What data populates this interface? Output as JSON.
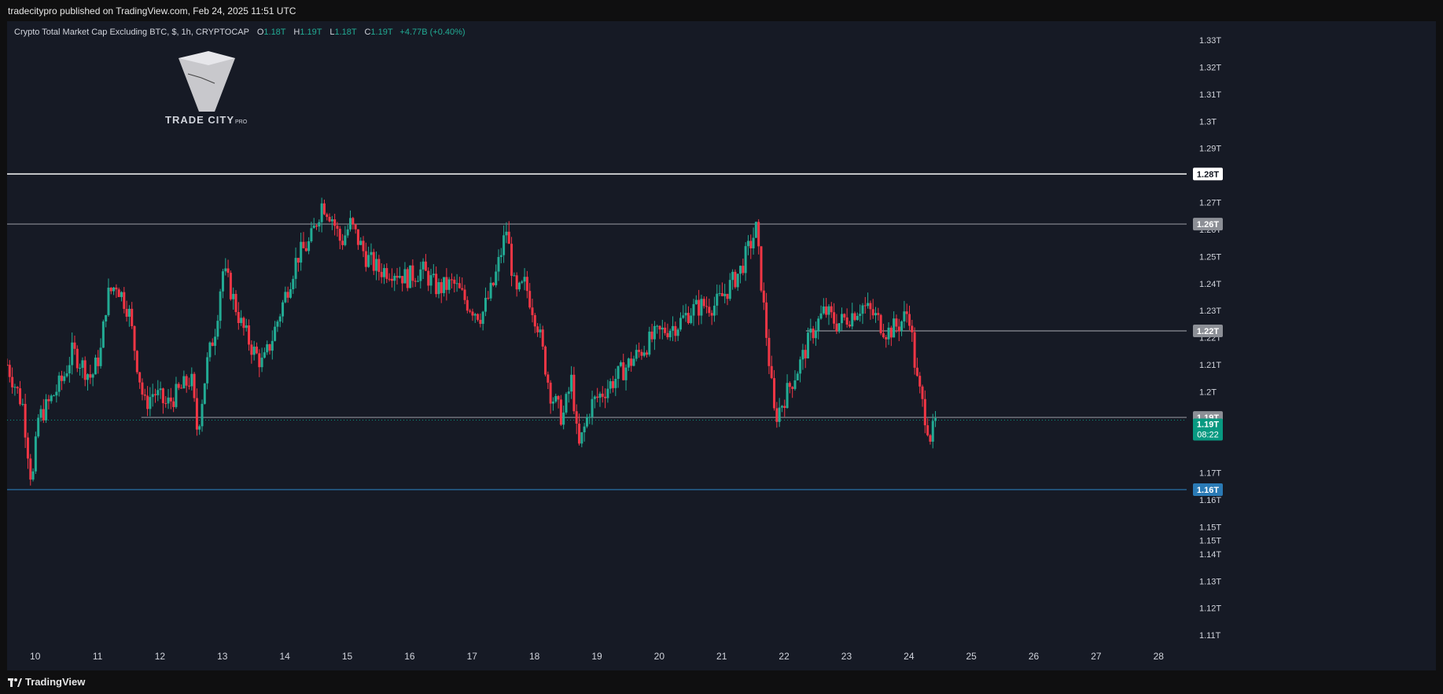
{
  "header": {
    "published_by": "tradecitypro published on TradingView.com, Feb 24, 2025 11:51 UTC"
  },
  "legend": {
    "symbol": "Crypto Total Market Cap Excluding BTC, $, 1h, CRYPTOCAP",
    "o_label": "O",
    "o_value": "1.18T",
    "h_label": "H",
    "h_value": "1.19T",
    "l_label": "L",
    "l_value": "1.18T",
    "c_label": "C",
    "c_value": "1.19T",
    "change": "+4.77B (+0.40%)"
  },
  "logo": {
    "text": "TRADE CITY",
    "suffix": "PRO"
  },
  "footer": {
    "brand": "TradingView"
  },
  "colors": {
    "background": "#161a25",
    "up": "#22ab94",
    "down": "#f23645",
    "grid_text": "#d1d4dc",
    "level_white": "#ffffff",
    "level_gray": "#8c8f96",
    "level_blue": "#2a7ab5",
    "current_price": "#089981"
  },
  "chart_data": {
    "type": "candlestick",
    "title": "Crypto Total Market Cap Excluding BTC, $, 1h, CRYPTOCAP",
    "x_unit": "day of month (Feb 2025)",
    "xlim": [
      9.55,
      28.45
    ],
    "ylim": [
      1.1045,
      1.337
    ],
    "y_ticks": [
      "1.11T",
      "1.12T",
      "1.13T",
      "1.14T",
      "1.15T",
      "1.15T",
      "1.16T",
      "1.17T",
      "1.19T",
      "1.2T",
      "1.21T",
      "1.22T",
      "1.23T",
      "1.24T",
      "1.25T",
      "1.26T",
      "1.27T",
      "1.28T",
      "1.29T",
      "1.3T",
      "1.31T",
      "1.32T",
      "1.33T"
    ],
    "y_tick_values": [
      1.11,
      1.12,
      1.13,
      1.14,
      1.145,
      1.15,
      1.16,
      1.17,
      1.19,
      1.2,
      1.21,
      1.22,
      1.23,
      1.24,
      1.25,
      1.26,
      1.27,
      1.28,
      1.29,
      1.3,
      1.31,
      1.32,
      1.33
    ],
    "x_ticks": [
      "10",
      "11",
      "12",
      "13",
      "14",
      "15",
      "16",
      "17",
      "18",
      "19",
      "20",
      "21",
      "22",
      "23",
      "24",
      "25",
      "26",
      "27",
      "28"
    ],
    "x_tick_values": [
      10,
      11,
      12,
      13,
      14,
      15,
      16,
      17,
      18,
      19,
      20,
      21,
      22,
      23,
      24,
      25,
      26,
      27,
      28
    ],
    "price_path": [
      [
        9.55,
        1.21
      ],
      [
        9.8,
        1.195
      ],
      [
        9.95,
        1.165
      ],
      [
        10.05,
        1.19
      ],
      [
        10.2,
        1.195
      ],
      [
        10.45,
        1.205
      ],
      [
        10.6,
        1.215
      ],
      [
        10.75,
        1.21
      ],
      [
        10.9,
        1.205
      ],
      [
        11.05,
        1.215
      ],
      [
        11.15,
        1.235
      ],
      [
        11.3,
        1.24
      ],
      [
        11.5,
        1.23
      ],
      [
        11.6,
        1.215
      ],
      [
        11.75,
        1.195
      ],
      [
        11.9,
        1.2
      ],
      [
        12.1,
        1.195
      ],
      [
        12.3,
        1.2
      ],
      [
        12.5,
        1.205
      ],
      [
        12.6,
        1.185
      ],
      [
        12.75,
        1.21
      ],
      [
        12.9,
        1.225
      ],
      [
        13.0,
        1.245
      ],
      [
        13.1,
        1.24
      ],
      [
        13.3,
        1.225
      ],
      [
        13.5,
        1.215
      ],
      [
        13.65,
        1.21
      ],
      [
        13.8,
        1.22
      ],
      [
        14.0,
        1.235
      ],
      [
        14.2,
        1.25
      ],
      [
        14.4,
        1.255
      ],
      [
        14.6,
        1.27
      ],
      [
        14.75,
        1.265
      ],
      [
        14.9,
        1.255
      ],
      [
        15.05,
        1.262
      ],
      [
        15.3,
        1.25
      ],
      [
        15.5,
        1.245
      ],
      [
        15.75,
        1.245
      ],
      [
        15.95,
        1.242
      ],
      [
        16.2,
        1.245
      ],
      [
        16.45,
        1.238
      ],
      [
        16.7,
        1.24
      ],
      [
        16.95,
        1.232
      ],
      [
        17.15,
        1.228
      ],
      [
        17.35,
        1.24
      ],
      [
        17.55,
        1.26
      ],
      [
        17.7,
        1.235
      ],
      [
        17.85,
        1.24
      ],
      [
        18.05,
        1.225
      ],
      [
        18.25,
        1.2
      ],
      [
        18.45,
        1.19
      ],
      [
        18.6,
        1.205
      ],
      [
        18.7,
        1.178
      ],
      [
        18.9,
        1.195
      ],
      [
        19.1,
        1.2
      ],
      [
        19.3,
        1.205
      ],
      [
        19.5,
        1.21
      ],
      [
        19.7,
        1.215
      ],
      [
        19.9,
        1.22
      ],
      [
        20.1,
        1.223
      ],
      [
        20.3,
        1.225
      ],
      [
        20.5,
        1.23
      ],
      [
        20.7,
        1.232
      ],
      [
        20.9,
        1.232
      ],
      [
        21.1,
        1.238
      ],
      [
        21.3,
        1.245
      ],
      [
        21.55,
        1.26
      ],
      [
        21.7,
        1.225
      ],
      [
        21.85,
        1.19
      ],
      [
        22.05,
        1.2
      ],
      [
        22.25,
        1.21
      ],
      [
        22.45,
        1.222
      ],
      [
        22.65,
        1.23
      ],
      [
        22.85,
        1.225
      ],
      [
        23.05,
        1.228
      ],
      [
        23.25,
        1.232
      ],
      [
        23.45,
        1.228
      ],
      [
        23.65,
        1.222
      ],
      [
        23.85,
        1.225
      ],
      [
        24.0,
        1.23
      ],
      [
        24.12,
        1.205
      ],
      [
        24.22,
        1.195
      ],
      [
        24.35,
        1.183
      ],
      [
        24.45,
        1.19
      ]
    ],
    "horizontal_levels": [
      {
        "price": 1.2805,
        "label": "1.28T",
        "color": "#ffffff",
        "from_x": 9.55,
        "tag_bg": "#ffffff",
        "tag_fg": "#131722"
      },
      {
        "price": 1.262,
        "label": "1.26T",
        "color": "#8c8f96",
        "from_x": 9.55,
        "tag_bg": "#8c8f96",
        "tag_fg": "#ffffff"
      },
      {
        "price": 1.2225,
        "label": "1.22T",
        "color": "#8c8f96",
        "from_x": 22.35,
        "tag_bg": "#8c8f96",
        "tag_fg": "#ffffff"
      },
      {
        "price": 1.1905,
        "label": "1.19T",
        "color": "#8c8f96",
        "from_x": 11.7,
        "tag_bg": "#8c8f96",
        "tag_fg": "#ffffff"
      },
      {
        "price": 1.1638,
        "label": "1.16T",
        "color": "#2a7ab5",
        "from_x": 9.55,
        "tag_bg": "#2a7ab5",
        "tag_fg": "#ffffff"
      }
    ],
    "current_price": {
      "price": 1.1895,
      "label": "1.19T",
      "countdown": "08:22"
    }
  }
}
